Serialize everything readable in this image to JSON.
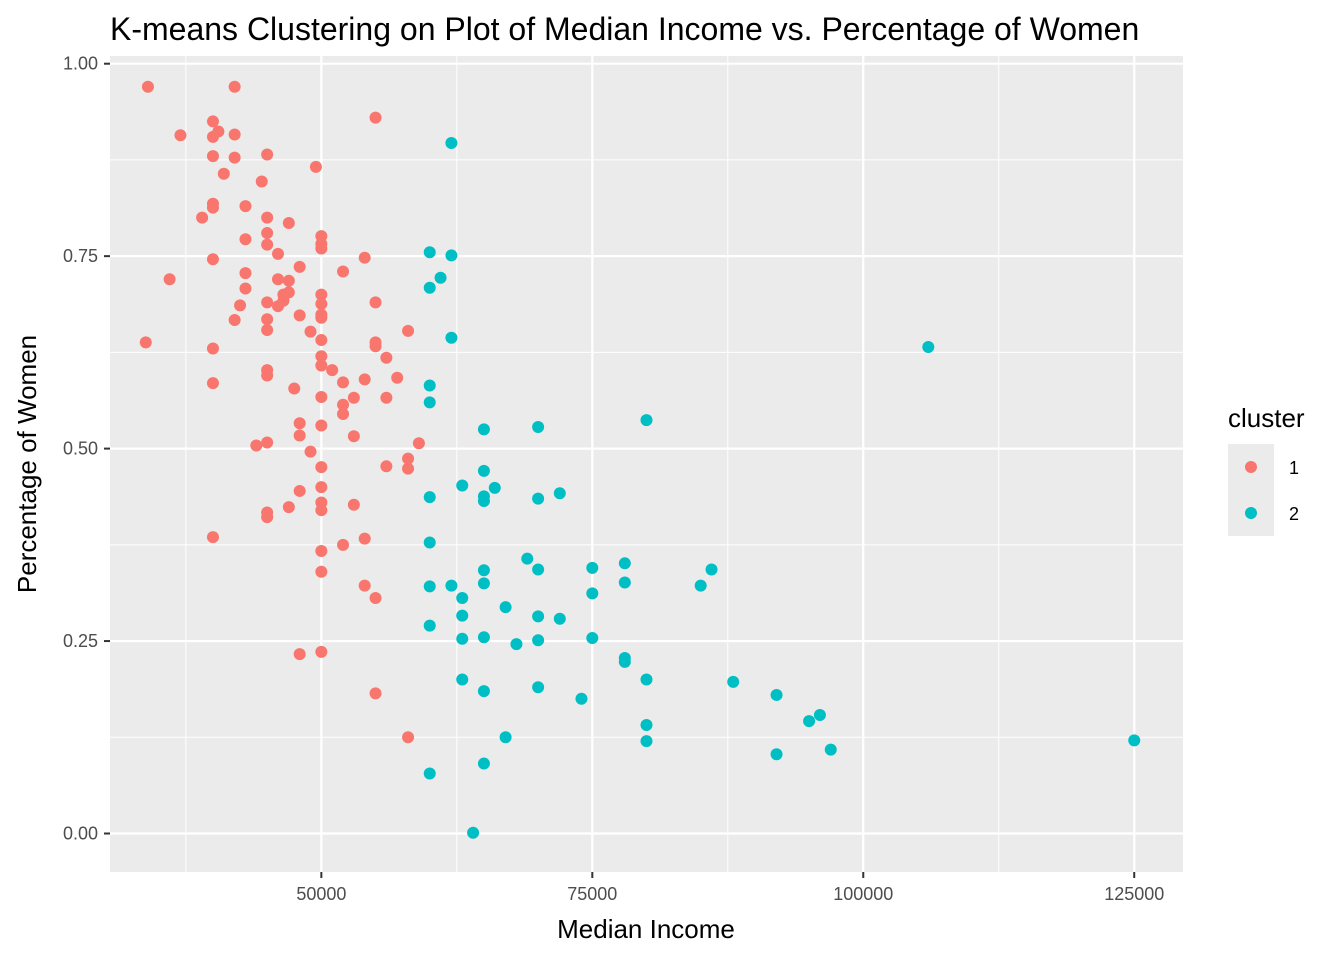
{
  "chart_data": {
    "type": "scatter",
    "title": "K-means Clustering on Plot of Median Income vs. Percentage of Women",
    "xlabel": "Median Income",
    "ylabel": "Percentage of Women",
    "xlim": [
      30500,
      129500
    ],
    "ylim": [
      -0.05,
      1.01
    ],
    "x_ticks": [
      50000,
      75000,
      100000,
      125000
    ],
    "x_tick_labels": [
      "50000",
      "75000",
      "100000",
      "125000"
    ],
    "y_ticks": [
      0,
      0.25,
      0.5,
      0.75,
      1.0
    ],
    "y_tick_labels": [
      "0.00",
      "0.25",
      "0.50",
      "0.75",
      "1.00"
    ],
    "grid": true,
    "panel_background": "#ebebeb",
    "legend": {
      "title": "cluster",
      "position": "right",
      "entries": [
        {
          "label": "1",
          "color": "#f8766d"
        },
        {
          "label": "2",
          "color": "#00bfc4"
        }
      ]
    },
    "series": [
      {
        "name": "1",
        "color": "#f8766d",
        "points": [
          [
            34000,
            0.97
          ],
          [
            42000,
            0.97
          ],
          [
            55000,
            0.93
          ],
          [
            40000,
            0.925
          ],
          [
            37000,
            0.907
          ],
          [
            42000,
            0.908
          ],
          [
            40500,
            0.912
          ],
          [
            40000,
            0.905
          ],
          [
            40000,
            0.88
          ],
          [
            42000,
            0.878
          ],
          [
            45000,
            0.882
          ],
          [
            41000,
            0.857
          ],
          [
            49500,
            0.866
          ],
          [
            44500,
            0.847
          ],
          [
            40000,
            0.818
          ],
          [
            40000,
            0.813
          ],
          [
            43000,
            0.815
          ],
          [
            39000,
            0.8
          ],
          [
            45000,
            0.8
          ],
          [
            47000,
            0.793
          ],
          [
            45000,
            0.78
          ],
          [
            43000,
            0.772
          ],
          [
            50000,
            0.776
          ],
          [
            45000,
            0.765
          ],
          [
            50000,
            0.766
          ],
          [
            50000,
            0.76
          ],
          [
            46000,
            0.753
          ],
          [
            40000,
            0.746
          ],
          [
            54000,
            0.748
          ],
          [
            48000,
            0.736
          ],
          [
            52000,
            0.73
          ],
          [
            36000,
            0.72
          ],
          [
            46000,
            0.72
          ],
          [
            47000,
            0.718
          ],
          [
            43000,
            0.728
          ],
          [
            43000,
            0.708
          ],
          [
            46500,
            0.7
          ],
          [
            47000,
            0.703
          ],
          [
            50000,
            0.7
          ],
          [
            50000,
            0.688
          ],
          [
            42500,
            0.686
          ],
          [
            45000,
            0.69
          ],
          [
            46000,
            0.685
          ],
          [
            46500,
            0.692
          ],
          [
            55000,
            0.69
          ],
          [
            50000,
            0.674
          ],
          [
            42000,
            0.667
          ],
          [
            45000,
            0.668
          ],
          [
            48000,
            0.673
          ],
          [
            50000,
            0.67
          ],
          [
            45000,
            0.654
          ],
          [
            49000,
            0.652
          ],
          [
            58000,
            0.653
          ],
          [
            33800,
            0.638
          ],
          [
            50000,
            0.641
          ],
          [
            55000,
            0.638
          ],
          [
            55000,
            0.633
          ],
          [
            40000,
            0.63
          ],
          [
            50000,
            0.62
          ],
          [
            56000,
            0.618
          ],
          [
            50000,
            0.608
          ],
          [
            51000,
            0.602
          ],
          [
            45000,
            0.602
          ],
          [
            45000,
            0.595
          ],
          [
            57000,
            0.592
          ],
          [
            54000,
            0.59
          ],
          [
            40000,
            0.585
          ],
          [
            52000,
            0.586
          ],
          [
            47500,
            0.578
          ],
          [
            50000,
            0.567
          ],
          [
            53000,
            0.566
          ],
          [
            56000,
            0.566
          ],
          [
            52000,
            0.557
          ],
          [
            52000,
            0.545
          ],
          [
            50000,
            0.53
          ],
          [
            48000,
            0.533
          ],
          [
            48000,
            0.517
          ],
          [
            53000,
            0.516
          ],
          [
            45000,
            0.508
          ],
          [
            44000,
            0.504
          ],
          [
            59000,
            0.507
          ],
          [
            49000,
            0.496
          ],
          [
            58000,
            0.487
          ],
          [
            50000,
            0.476
          ],
          [
            56000,
            0.477
          ],
          [
            58000,
            0.474
          ],
          [
            50000,
            0.45
          ],
          [
            48000,
            0.445
          ],
          [
            50000,
            0.43
          ],
          [
            53000,
            0.427
          ],
          [
            47000,
            0.424
          ],
          [
            50000,
            0.42
          ],
          [
            45000,
            0.417
          ],
          [
            45000,
            0.411
          ],
          [
            40000,
            0.385
          ],
          [
            54000,
            0.383
          ],
          [
            52000,
            0.375
          ],
          [
            50000,
            0.367
          ],
          [
            50000,
            0.34
          ],
          [
            54000,
            0.322
          ],
          [
            55000,
            0.306
          ],
          [
            50000,
            0.236
          ],
          [
            48000,
            0.233
          ],
          [
            55000,
            0.182
          ],
          [
            58000,
            0.125
          ]
        ]
      },
      {
        "name": "2",
        "color": "#00bfc4",
        "points": [
          [
            62000,
            0.897
          ],
          [
            60000,
            0.755
          ],
          [
            62000,
            0.751
          ],
          [
            61000,
            0.722
          ],
          [
            60000,
            0.709
          ],
          [
            62000,
            0.644
          ],
          [
            106000,
            0.632
          ],
          [
            60000,
            0.582
          ],
          [
            60000,
            0.56
          ],
          [
            80000,
            0.537
          ],
          [
            70000,
            0.528
          ],
          [
            65000,
            0.525
          ],
          [
            65000,
            0.471
          ],
          [
            63000,
            0.452
          ],
          [
            66000,
            0.449
          ],
          [
            72000,
            0.442
          ],
          [
            65000,
            0.438
          ],
          [
            60000,
            0.437
          ],
          [
            70000,
            0.435
          ],
          [
            65000,
            0.432
          ],
          [
            60000,
            0.378
          ],
          [
            69000,
            0.357
          ],
          [
            78000,
            0.351
          ],
          [
            75000,
            0.345
          ],
          [
            70000,
            0.343
          ],
          [
            86000,
            0.343
          ],
          [
            65000,
            0.342
          ],
          [
            78000,
            0.326
          ],
          [
            65000,
            0.325
          ],
          [
            62000,
            0.322
          ],
          [
            60000,
            0.321
          ],
          [
            85000,
            0.322
          ],
          [
            75000,
            0.312
          ],
          [
            63000,
            0.306
          ],
          [
            67000,
            0.294
          ],
          [
            63000,
            0.283
          ],
          [
            70000,
            0.282
          ],
          [
            72000,
            0.279
          ],
          [
            60000,
            0.27
          ],
          [
            65000,
            0.255
          ],
          [
            75000,
            0.254
          ],
          [
            63000,
            0.253
          ],
          [
            70000,
            0.251
          ],
          [
            68000,
            0.246
          ],
          [
            78000,
            0.228
          ],
          [
            78000,
            0.223
          ],
          [
            63000,
            0.2
          ],
          [
            80000,
            0.2
          ],
          [
            88000,
            0.197
          ],
          [
            70000,
            0.19
          ],
          [
            65000,
            0.185
          ],
          [
            92000,
            0.18
          ],
          [
            74000,
            0.175
          ],
          [
            96000,
            0.154
          ],
          [
            95000,
            0.146
          ],
          [
            80000,
            0.141
          ],
          [
            67000,
            0.125
          ],
          [
            80000,
            0.12
          ],
          [
            125000,
            0.121
          ],
          [
            97000,
            0.109
          ],
          [
            92000,
            0.103
          ],
          [
            65000,
            0.091
          ],
          [
            60000,
            0.078
          ],
          [
            64000,
            0.001
          ]
        ]
      }
    ]
  }
}
